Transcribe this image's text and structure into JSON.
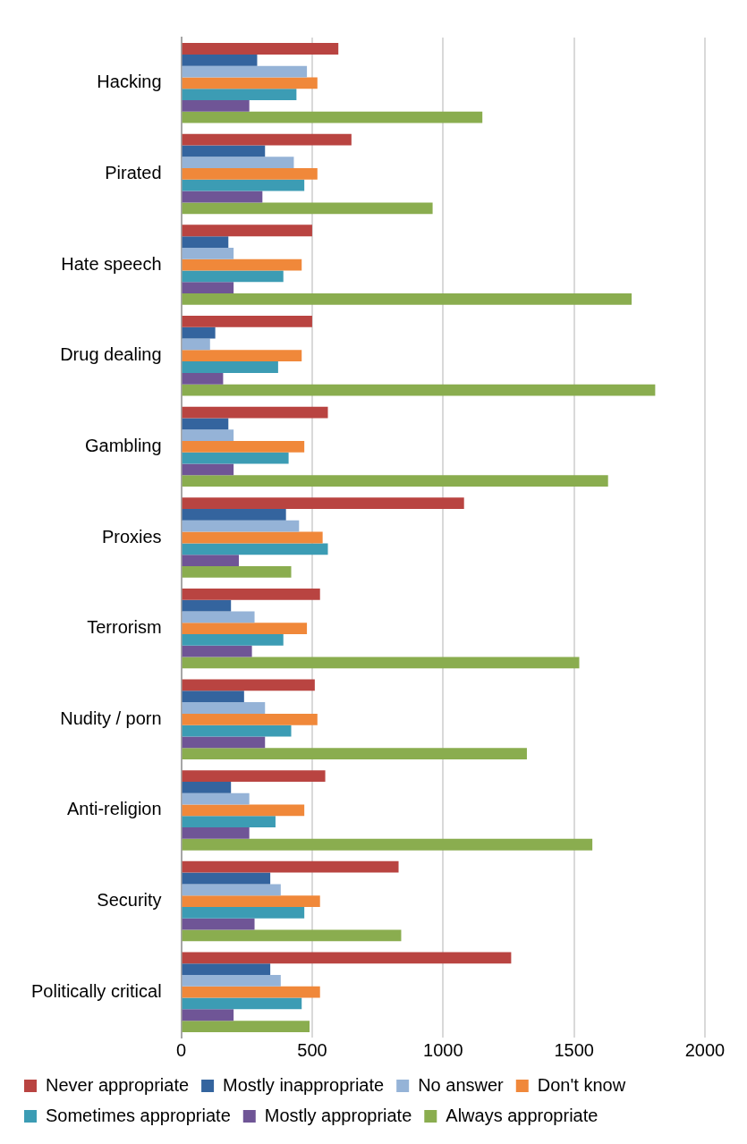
{
  "chart_data": {
    "type": "bar",
    "orientation": "horizontal",
    "categories": [
      "Hacking",
      "Pirated",
      "Hate speech",
      "Drug dealing",
      "Gambling",
      "Proxies",
      "Terrorism",
      "Nudity / porn",
      "Anti-religion",
      "Security",
      "Politically critical"
    ],
    "series": [
      {
        "name": "Never appropriate",
        "color": "#b94441",
        "values": [
          600,
          650,
          500,
          500,
          560,
          1080,
          530,
          510,
          550,
          830,
          1260
        ]
      },
      {
        "name": "Mostly inappropriate",
        "color": "#34649e",
        "values": [
          290,
          320,
          180,
          130,
          180,
          400,
          190,
          240,
          190,
          340,
          340
        ]
      },
      {
        "name": "No answer",
        "color": "#95b3d7",
        "values": [
          480,
          430,
          200,
          110,
          200,
          450,
          280,
          320,
          260,
          380,
          380
        ]
      },
      {
        "name": "Don't know",
        "color": "#f0883a",
        "values": [
          520,
          520,
          460,
          460,
          470,
          540,
          480,
          520,
          470,
          530,
          530
        ]
      },
      {
        "name": "Sometimes appropriate",
        "color": "#3c9cb4",
        "values": [
          440,
          470,
          390,
          370,
          410,
          560,
          390,
          420,
          360,
          470,
          460
        ]
      },
      {
        "name": "Mostly appropriate",
        "color": "#6f5596",
        "values": [
          260,
          310,
          200,
          160,
          200,
          220,
          270,
          320,
          260,
          280,
          200
        ]
      },
      {
        "name": "Always appropriate",
        "color": "#8aad4f",
        "values": [
          1150,
          960,
          1720,
          1810,
          1630,
          420,
          1520,
          1320,
          1570,
          840,
          490
        ]
      }
    ],
    "xlim": [
      0,
      2000
    ],
    "xticks": [
      0,
      500,
      1000,
      1500,
      2000
    ],
    "grid": "x",
    "legend": "bottom"
  }
}
